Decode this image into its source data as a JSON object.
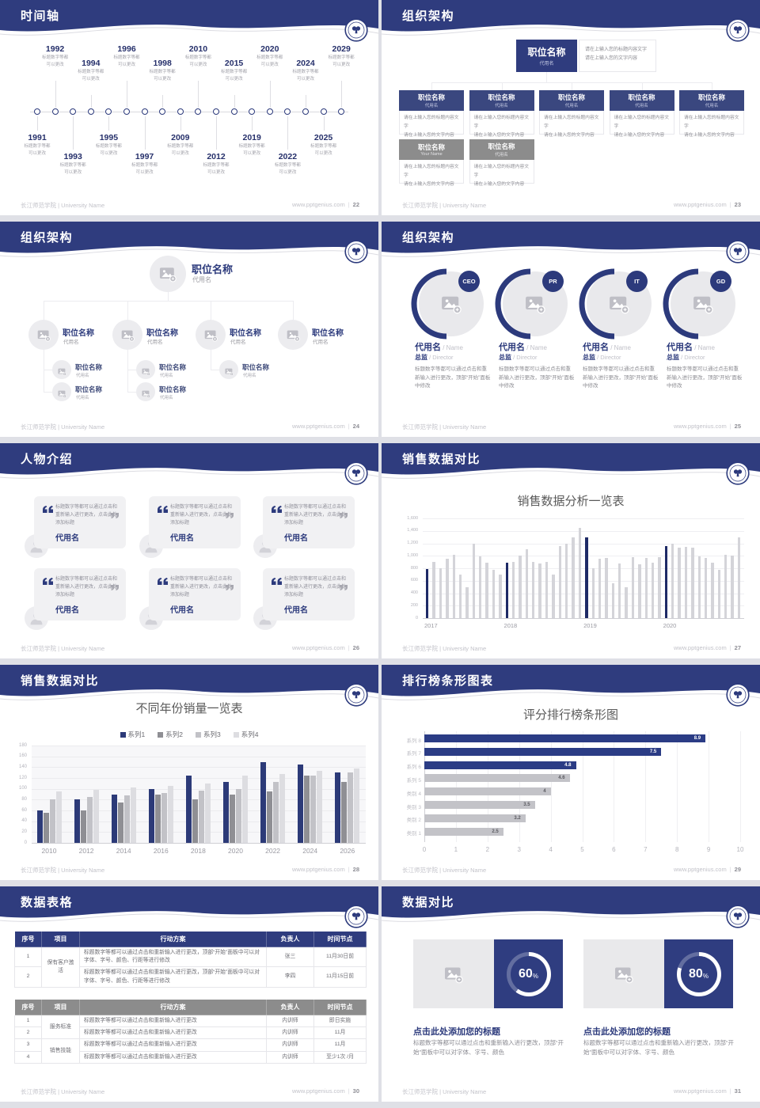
{
  "footer": {
    "left": "长江师范学院 | University Name",
    "site": "www.pptgenius.com"
  },
  "colors": {
    "navy": "#2f3c7e",
    "navy_dark": "#1e2a66",
    "navy_text": "#2c3a7c",
    "gray_bar": "#d4d4d9",
    "gray_header": "#8c8c8c"
  },
  "slides": {
    "timeline": {
      "title": "时间轴",
      "page": "22",
      "note_line1": "标题数字等都",
      "note_line2": "可以更改",
      "points": [
        {
          "year": "1991",
          "side": "bottom",
          "level": 1
        },
        {
          "year": "1992",
          "side": "top",
          "level": 1
        },
        {
          "year": "1993",
          "side": "bottom",
          "level": 2
        },
        {
          "year": "1994",
          "side": "top",
          "level": 2
        },
        {
          "year": "1995",
          "side": "bottom",
          "level": 1
        },
        {
          "year": "1996",
          "side": "top",
          "level": 1
        },
        {
          "year": "1997",
          "side": "bottom",
          "level": 2
        },
        {
          "year": "1998",
          "side": "top",
          "level": 2
        },
        {
          "year": "2009",
          "side": "bottom",
          "level": 1
        },
        {
          "year": "2010",
          "side": "top",
          "level": 1
        },
        {
          "year": "2012",
          "side": "bottom",
          "level": 2
        },
        {
          "year": "2015",
          "side": "top",
          "level": 2
        },
        {
          "year": "2019",
          "side": "bottom",
          "level": 1
        },
        {
          "year": "2020",
          "side": "top",
          "level": 1
        },
        {
          "year": "2022",
          "side": "bottom",
          "level": 2
        },
        {
          "year": "2024",
          "side": "top",
          "level": 2
        },
        {
          "year": "2025",
          "side": "bottom",
          "level": 1
        },
        {
          "year": "2029",
          "side": "top",
          "level": 1
        }
      ]
    },
    "org_boxes": {
      "title": "组织架构",
      "page": "23",
      "root": {
        "position": "职位名称",
        "alias": "代用名"
      },
      "root_desc": [
        "请在上输入您的标题内容文字",
        "请在上输入您的文字内容"
      ],
      "branches": [
        {
          "position": "职位名称",
          "alias": "代用名",
          "desc": [
            "请在上输入您的标题内容文字",
            "请在上输入您的文字内容"
          ]
        },
        {
          "position": "职位名称",
          "alias": "代用名",
          "desc": [
            "请在上输入您的标题内容文字",
            "请在上输入您的文字内容"
          ]
        },
        {
          "position": "职位名称",
          "alias": "代用名",
          "desc": [
            "请在上输入您的标题内容文字",
            "请在上输入您的文字内容"
          ]
        },
        {
          "position": "职位名称",
          "alias": "代用名",
          "desc": [
            "请在上输入您的标题内容文字",
            "请在上输入您的文字内容"
          ]
        },
        {
          "position": "职位名称",
          "alias": "代用名",
          "desc": [
            "请在上输入您的标题内容文字",
            "请在上输入您的文字内容"
          ]
        }
      ],
      "extras": [
        {
          "position": "职位名称",
          "alias": "Your Name",
          "desc": [
            "请在上输入您的标题内容文字",
            "请在上输入您的文字内容"
          ]
        },
        {
          "position": "职位名称",
          "alias": "代用名",
          "desc": [
            "请在上输入您的标题内容文字",
            "请在上输入您的文字内容"
          ]
        }
      ]
    },
    "org_tree": {
      "title": "组织架构",
      "page": "24",
      "root": {
        "position": "职位名称",
        "alias": "代用名"
      },
      "branches": [
        {
          "position": "职位名称",
          "alias": "代用名",
          "children": [
            {
              "position": "职位名称",
              "alias": "代用名"
            },
            {
              "position": "职位名称",
              "alias": "代用名"
            }
          ]
        },
        {
          "position": "职位名称",
          "alias": "代用名",
          "children": [
            {
              "position": "职位名称",
              "alias": "代用名"
            },
            {
              "position": "职位名称",
              "alias": "代用名"
            }
          ]
        },
        {
          "position": "职位名称",
          "alias": "代用名",
          "children": [
            {
              "position": "职位名称",
              "alias": "代用名"
            }
          ]
        },
        {
          "position": "职位名称",
          "alias": "代用名",
          "children": []
        }
      ]
    },
    "org_people": {
      "title": "组织架构",
      "page": "25",
      "members": [
        {
          "badge": "CEO",
          "name": "代用名",
          "name_en": "Name",
          "role": "总监",
          "role_en": "Director",
          "desc": "标题数字等都可以通过点击和重新输入进行更改，顶部“开始”面板中修改"
        },
        {
          "badge": "PR",
          "name": "代用名",
          "name_en": "Name",
          "role": "总监",
          "role_en": "Director",
          "desc": "标题数字等都可以通过点击和重新输入进行更改，顶部“开始”面板中修改"
        },
        {
          "badge": "IT",
          "name": "代用名",
          "name_en": "Name",
          "role": "总监",
          "role_en": "Director",
          "desc": "标题数字等都可以通过点击和重新输入进行更改，顶部“开始”面板中修改"
        },
        {
          "badge": "GD",
          "name": "代用名",
          "name_en": "Name",
          "role": "总监",
          "role_en": "Director",
          "desc": "标题数字等都可以通过点击和重新输入进行更改，顶部“开始”面板中修改"
        }
      ]
    },
    "people_intro": {
      "title": "人物介绍",
      "page": "26",
      "cards": [
        {
          "quote": "标题数字等都可以通过点击和重新输入进行更改，点击此处添加标题",
          "name": "代用名"
        },
        {
          "quote": "标题数字等都可以通过点击和重新输入进行更改，点击此处添加标题",
          "name": "代用名"
        },
        {
          "quote": "标题数字等都可以通过点击和重新输入进行更改，点击此处添加标题",
          "name": "代用名"
        },
        {
          "quote": "标题数字等都可以通过点击和重新输入进行更改，点击此处添加标题",
          "name": "代用名"
        },
        {
          "quote": "标题数字等都可以通过点击和重新输入进行更改，点击此处添加标题",
          "name": "代用名"
        },
        {
          "quote": "标题数字等都可以通过点击和重新输入进行更改，点击此处添加标题",
          "name": "代用名"
        }
      ]
    },
    "sales_monthly": {
      "title": "销售数据对比",
      "page": "27"
    },
    "sales_yearly": {
      "title": "销售数据对比",
      "page": "28"
    },
    "ranking": {
      "title": "排行榜条形图表",
      "page": "29"
    },
    "data_table": {
      "title": "数据表格",
      "page": "30",
      "headers": [
        "序号",
        "项目",
        "行动方案",
        "负责人",
        "时间节点"
      ],
      "table1": {
        "merged_item": "保有客户激活",
        "rows": [
          {
            "no": "1",
            "plan": "标题数字等都可以通过点击和重新输入进行更改，顶部“开始”面板中可以对字体、字号、颜色、行距等进行修改",
            "owner": "张三",
            "time": "11月30日前"
          },
          {
            "no": "2",
            "plan": "标题数字等都可以通过点击和重新输入进行更改，顶部“开始”面板中可以对字体、字号、颜色、行距等进行修改",
            "owner": "李四",
            "time": "11月15日前"
          }
        ]
      },
      "table2": {
        "groups": [
          {
            "item": "服务标准",
            "rows": [
              {
                "no": "1",
                "plan": "标题数字等都可以通过点击和重新输入进行更改",
                "owner": "内训师",
                "time": "即日实施"
              },
              {
                "no": "2",
                "plan": "标题数字等都可以通过点击和重新输入进行更改",
                "owner": "内训师",
                "time": "11月"
              }
            ]
          },
          {
            "item": "销售技能",
            "rows": [
              {
                "no": "3",
                "plan": "标题数字等都可以通过点击和重新输入进行更改",
                "owner": "内训师",
                "time": "11月"
              },
              {
                "no": "4",
                "plan": "标题数字等都可以通过点击和重新输入进行更改",
                "owner": "内训师",
                "time": "至少1次 /月"
              }
            ]
          }
        ]
      }
    },
    "data_compare": {
      "title": "数据对比",
      "page": "31",
      "cards": [
        {
          "percent": 60,
          "percent_label": "60",
          "heading": "点击此处添加您的标题",
          "body": "标题数字等都可以通过点击和重新输入进行更改，顶部“开始”面板中可以对字体、字号、颜色"
        },
        {
          "percent": 80,
          "percent_label": "80",
          "heading": "点击此处添加您的标题",
          "body": "标题数字等都可以通过点击和重新输入进行更改，顶部“开始”面板中可以对字体、字号、颜色"
        }
      ]
    }
  },
  "chart_data": [
    {
      "id": "monthly_sales",
      "type": "bar",
      "title": "销售数据分析一览表",
      "x_groups": [
        "2017",
        "2018",
        "2019",
        "2020"
      ],
      "values": [
        790,
        900,
        800,
        950,
        1020,
        700,
        500,
        1200,
        990,
        890,
        780,
        700,
        890,
        900,
        1000,
        1100,
        900,
        880,
        900,
        700,
        1150,
        1200,
        1300,
        1450,
        1300,
        800,
        950,
        970,
        560,
        870,
        490,
        980,
        860,
        960,
        890,
        980,
        1150,
        1200,
        1130,
        1140,
        1130,
        990,
        970,
        890,
        770,
        1020,
        1000,
        1300
      ],
      "highlight_indices": [
        0,
        12,
        24,
        36
      ],
      "ylim": [
        0,
        1600
      ],
      "ytick_step": 200,
      "ytick_labels": [
        "0",
        "200",
        "400",
        "600",
        "800",
        "1,000",
        "1,200",
        "1,400",
        "1,600"
      ],
      "bar_color": "#d4d4d9",
      "highlight_color": "#1e2a66",
      "grid": true,
      "legend": "none"
    },
    {
      "id": "yearly_sales",
      "type": "bar",
      "title": "不同年份销量一览表",
      "categories": [
        "2010",
        "2012",
        "2014",
        "2016",
        "2018",
        "2020",
        "2022",
        "2024",
        "2026"
      ],
      "series": [
        {
          "name": "系列1",
          "color": "#2c3a78",
          "values": [
            60,
            80,
            90,
            100,
            125,
            113,
            150,
            145,
            130
          ]
        },
        {
          "name": "系列2",
          "color": "#8f8f94",
          "values": [
            55,
            60,
            75,
            90,
            80,
            90,
            95,
            125,
            113
          ]
        },
        {
          "name": "系列3",
          "color": "#c2c2c7",
          "values": [
            80,
            85,
            88,
            92,
            97,
            100,
            112,
            125,
            130
          ]
        },
        {
          "name": "系列4",
          "color": "#dddde1",
          "values": [
            95,
            98,
            102,
            105,
            110,
            125,
            128,
            133,
            138
          ]
        }
      ],
      "ylim": [
        0,
        180
      ],
      "ytick_step": 20,
      "legend": "top"
    },
    {
      "id": "ranking",
      "type": "bar",
      "orientation": "horizontal",
      "title": "评分排行榜条形图",
      "bars": [
        {
          "label": "系列 8",
          "value": 8.9,
          "color": "#2b3c85"
        },
        {
          "label": "系列 7",
          "value": 7.5,
          "color": "#2b3c85"
        },
        {
          "label": "系列 6",
          "value": 4.8,
          "color": "#2b3c85"
        },
        {
          "label": "系列 5",
          "value": 4.6,
          "color": "#c3c3c8"
        },
        {
          "label": "类别 4",
          "value": 4,
          "color": "#c3c3c8"
        },
        {
          "label": "类别 3",
          "value": 3.5,
          "color": "#c3c3c8"
        },
        {
          "label": "类别 2",
          "value": 3.2,
          "color": "#c3c3c8"
        },
        {
          "label": "类别 1",
          "value": 2.5,
          "color": "#c3c3c8"
        }
      ],
      "xlim": [
        0,
        10
      ],
      "xtick_step": 1,
      "grid": true
    }
  ]
}
